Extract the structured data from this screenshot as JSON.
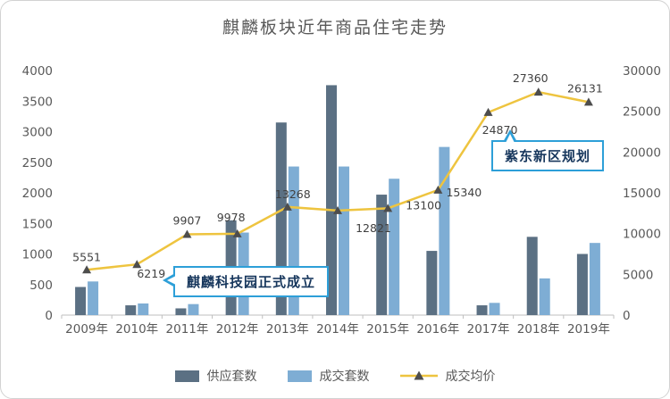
{
  "title": "麒麟板块近年商品住宅走势",
  "chart_data": {
    "type": "combo (bar + line)",
    "categories": [
      "2009年",
      "2010年",
      "2011年",
      "2012年",
      "2013年",
      "2014年",
      "2015年",
      "2016年",
      "2017年",
      "2018年",
      "2019年"
    ],
    "series": [
      {
        "name": "供应套数",
        "type": "bar",
        "axis": "left",
        "color": "#5b7083",
        "values": [
          460,
          160,
          110,
          1550,
          3150,
          3760,
          1970,
          1050,
          160,
          1280,
          1000
        ]
      },
      {
        "name": "成交套数",
        "type": "bar",
        "axis": "left",
        "color": "#7eadd4",
        "values": [
          550,
          190,
          180,
          1350,
          2430,
          2430,
          2230,
          2750,
          200,
          600,
          1180
        ]
      },
      {
        "name": "成交均价",
        "type": "line",
        "axis": "right",
        "color": "#eec43f",
        "marker": "triangle",
        "marker_color": "#4d4d4d",
        "values": [
          5551,
          6219,
          9907,
          9978,
          13268,
          12821,
          13100,
          15340,
          24870,
          27360,
          26131
        ]
      }
    ],
    "left_axis": {
      "min": 0,
      "max": 4000,
      "step": 500,
      "ticks": [
        "0",
        "500",
        "1000",
        "1500",
        "2000",
        "2500",
        "3000",
        "3500",
        "4000"
      ]
    },
    "right_axis": {
      "min": 0,
      "max": 30000,
      "step": 5000,
      "ticks": [
        "0",
        "5000",
        "10000",
        "15000",
        "20000",
        "25000",
        "30000"
      ]
    },
    "grid": "off",
    "legend_position": "bottom"
  },
  "annotations": [
    {
      "text": "麒麟科技园正式成立",
      "points_to": "2011年"
    },
    {
      "text": "紫东新区规划",
      "points_to": "2017年"
    }
  ],
  "colors": {
    "axis_text": "#595959",
    "data_label_text": "#404040",
    "axis_line": "#bfbfbf",
    "callout_border": "#2d9fd8",
    "callout_text": "#16365c"
  }
}
